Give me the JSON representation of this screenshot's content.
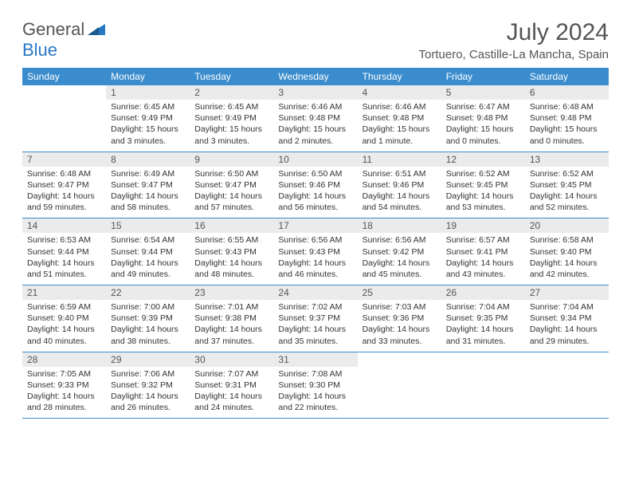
{
  "logo": {
    "text1": "General",
    "text2": "Blue"
  },
  "title": "July 2024",
  "location": "Tortuero, Castille-La Mancha, Spain",
  "weekdays": [
    "Sunday",
    "Monday",
    "Tuesday",
    "Wednesday",
    "Thursday",
    "Friday",
    "Saturday"
  ],
  "colors": {
    "header_bg": "#3a8ccd",
    "header_text": "#ffffff",
    "daynum_bg": "#ebebeb",
    "text": "#333333",
    "divider": "#3a8ccd"
  },
  "typography": {
    "title_fontsize": 30,
    "location_fontsize": 15,
    "weekday_fontsize": 12,
    "daynum_fontsize": 12,
    "body_fontsize": 10.5
  },
  "weeks": [
    [
      {
        "num": "",
        "sunrise": "",
        "sunset": "",
        "daylight": ""
      },
      {
        "num": "1",
        "sunrise": "Sunrise: 6:45 AM",
        "sunset": "Sunset: 9:49 PM",
        "daylight": "Daylight: 15 hours and 3 minutes."
      },
      {
        "num": "2",
        "sunrise": "Sunrise: 6:45 AM",
        "sunset": "Sunset: 9:49 PM",
        "daylight": "Daylight: 15 hours and 3 minutes."
      },
      {
        "num": "3",
        "sunrise": "Sunrise: 6:46 AM",
        "sunset": "Sunset: 9:48 PM",
        "daylight": "Daylight: 15 hours and 2 minutes."
      },
      {
        "num": "4",
        "sunrise": "Sunrise: 6:46 AM",
        "sunset": "Sunset: 9:48 PM",
        "daylight": "Daylight: 15 hours and 1 minute."
      },
      {
        "num": "5",
        "sunrise": "Sunrise: 6:47 AM",
        "sunset": "Sunset: 9:48 PM",
        "daylight": "Daylight: 15 hours and 0 minutes."
      },
      {
        "num": "6",
        "sunrise": "Sunrise: 6:48 AM",
        "sunset": "Sunset: 9:48 PM",
        "daylight": "Daylight: 15 hours and 0 minutes."
      }
    ],
    [
      {
        "num": "7",
        "sunrise": "Sunrise: 6:48 AM",
        "sunset": "Sunset: 9:47 PM",
        "daylight": "Daylight: 14 hours and 59 minutes."
      },
      {
        "num": "8",
        "sunrise": "Sunrise: 6:49 AM",
        "sunset": "Sunset: 9:47 PM",
        "daylight": "Daylight: 14 hours and 58 minutes."
      },
      {
        "num": "9",
        "sunrise": "Sunrise: 6:50 AM",
        "sunset": "Sunset: 9:47 PM",
        "daylight": "Daylight: 14 hours and 57 minutes."
      },
      {
        "num": "10",
        "sunrise": "Sunrise: 6:50 AM",
        "sunset": "Sunset: 9:46 PM",
        "daylight": "Daylight: 14 hours and 56 minutes."
      },
      {
        "num": "11",
        "sunrise": "Sunrise: 6:51 AM",
        "sunset": "Sunset: 9:46 PM",
        "daylight": "Daylight: 14 hours and 54 minutes."
      },
      {
        "num": "12",
        "sunrise": "Sunrise: 6:52 AM",
        "sunset": "Sunset: 9:45 PM",
        "daylight": "Daylight: 14 hours and 53 minutes."
      },
      {
        "num": "13",
        "sunrise": "Sunrise: 6:52 AM",
        "sunset": "Sunset: 9:45 PM",
        "daylight": "Daylight: 14 hours and 52 minutes."
      }
    ],
    [
      {
        "num": "14",
        "sunrise": "Sunrise: 6:53 AM",
        "sunset": "Sunset: 9:44 PM",
        "daylight": "Daylight: 14 hours and 51 minutes."
      },
      {
        "num": "15",
        "sunrise": "Sunrise: 6:54 AM",
        "sunset": "Sunset: 9:44 PM",
        "daylight": "Daylight: 14 hours and 49 minutes."
      },
      {
        "num": "16",
        "sunrise": "Sunrise: 6:55 AM",
        "sunset": "Sunset: 9:43 PM",
        "daylight": "Daylight: 14 hours and 48 minutes."
      },
      {
        "num": "17",
        "sunrise": "Sunrise: 6:56 AM",
        "sunset": "Sunset: 9:43 PM",
        "daylight": "Daylight: 14 hours and 46 minutes."
      },
      {
        "num": "18",
        "sunrise": "Sunrise: 6:56 AM",
        "sunset": "Sunset: 9:42 PM",
        "daylight": "Daylight: 14 hours and 45 minutes."
      },
      {
        "num": "19",
        "sunrise": "Sunrise: 6:57 AM",
        "sunset": "Sunset: 9:41 PM",
        "daylight": "Daylight: 14 hours and 43 minutes."
      },
      {
        "num": "20",
        "sunrise": "Sunrise: 6:58 AM",
        "sunset": "Sunset: 9:40 PM",
        "daylight": "Daylight: 14 hours and 42 minutes."
      }
    ],
    [
      {
        "num": "21",
        "sunrise": "Sunrise: 6:59 AM",
        "sunset": "Sunset: 9:40 PM",
        "daylight": "Daylight: 14 hours and 40 minutes."
      },
      {
        "num": "22",
        "sunrise": "Sunrise: 7:00 AM",
        "sunset": "Sunset: 9:39 PM",
        "daylight": "Daylight: 14 hours and 38 minutes."
      },
      {
        "num": "23",
        "sunrise": "Sunrise: 7:01 AM",
        "sunset": "Sunset: 9:38 PM",
        "daylight": "Daylight: 14 hours and 37 minutes."
      },
      {
        "num": "24",
        "sunrise": "Sunrise: 7:02 AM",
        "sunset": "Sunset: 9:37 PM",
        "daylight": "Daylight: 14 hours and 35 minutes."
      },
      {
        "num": "25",
        "sunrise": "Sunrise: 7:03 AM",
        "sunset": "Sunset: 9:36 PM",
        "daylight": "Daylight: 14 hours and 33 minutes."
      },
      {
        "num": "26",
        "sunrise": "Sunrise: 7:04 AM",
        "sunset": "Sunset: 9:35 PM",
        "daylight": "Daylight: 14 hours and 31 minutes."
      },
      {
        "num": "27",
        "sunrise": "Sunrise: 7:04 AM",
        "sunset": "Sunset: 9:34 PM",
        "daylight": "Daylight: 14 hours and 29 minutes."
      }
    ],
    [
      {
        "num": "28",
        "sunrise": "Sunrise: 7:05 AM",
        "sunset": "Sunset: 9:33 PM",
        "daylight": "Daylight: 14 hours and 28 minutes."
      },
      {
        "num": "29",
        "sunrise": "Sunrise: 7:06 AM",
        "sunset": "Sunset: 9:32 PM",
        "daylight": "Daylight: 14 hours and 26 minutes."
      },
      {
        "num": "30",
        "sunrise": "Sunrise: 7:07 AM",
        "sunset": "Sunset: 9:31 PM",
        "daylight": "Daylight: 14 hours and 24 minutes."
      },
      {
        "num": "31",
        "sunrise": "Sunrise: 7:08 AM",
        "sunset": "Sunset: 9:30 PM",
        "daylight": "Daylight: 14 hours and 22 minutes."
      },
      {
        "num": "",
        "sunrise": "",
        "sunset": "",
        "daylight": ""
      },
      {
        "num": "",
        "sunrise": "",
        "sunset": "",
        "daylight": ""
      },
      {
        "num": "",
        "sunrise": "",
        "sunset": "",
        "daylight": ""
      }
    ]
  ]
}
